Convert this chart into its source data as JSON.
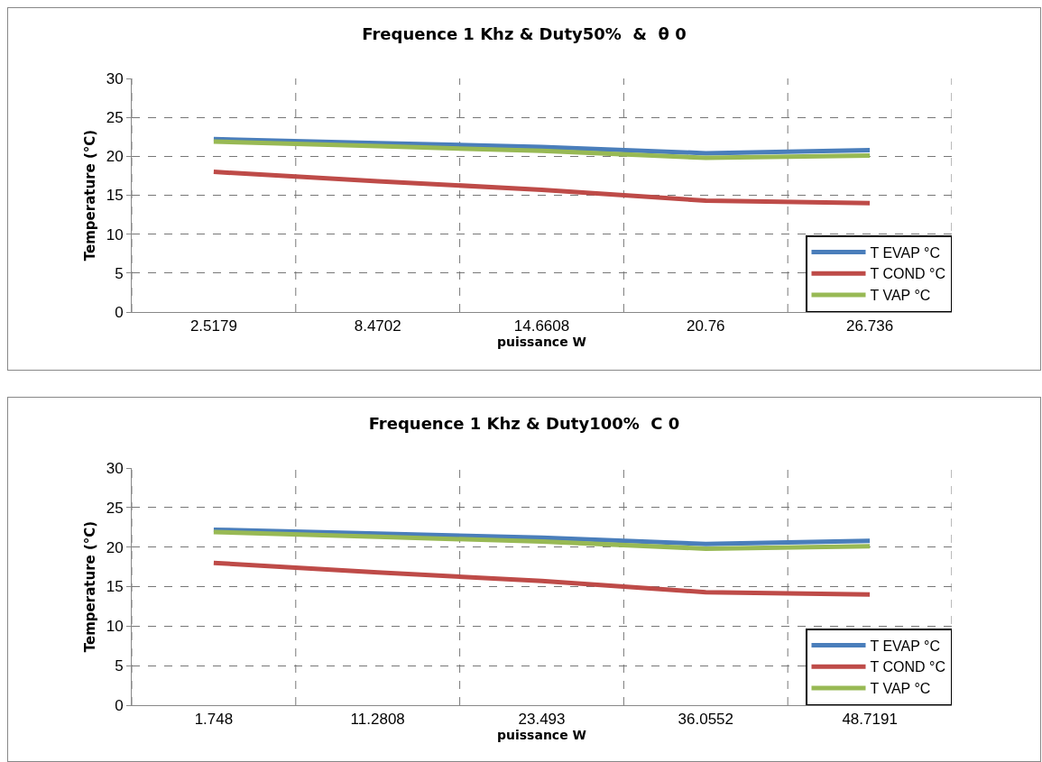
{
  "chart_data": [
    {
      "type": "line",
      "title": "Frequence 1 Khz & Duty50%  &  θ 0",
      "xlabel": "puissance W",
      "ylabel": "Temperature (°C)",
      "categories": [
        "2.5179",
        "8.4702",
        "14.6608",
        "20.76",
        "26.736"
      ],
      "series": [
        {
          "name": "T EVAP °C",
          "color": "#4a7ebb",
          "values": [
            22.2,
            21.7,
            21.2,
            20.4,
            20.8
          ]
        },
        {
          "name": "T COND °C",
          "color": "#be4b48",
          "values": [
            18,
            16.8,
            15.7,
            14.3,
            14
          ]
        },
        {
          "name": "T VAP °C",
          "color": "#98b954",
          "values": [
            21.9,
            21.3,
            20.7,
            19.8,
            20.1
          ]
        }
      ],
      "ylim": [
        0,
        30
      ],
      "yticks": [
        0,
        5,
        10,
        15,
        20,
        25,
        30
      ],
      "grid": true,
      "legend": "bottom right",
      "marker": "none",
      "line_style": "solid"
    },
    {
      "type": "line",
      "title": "Frequence 1 Khz & Duty100%  C 0",
      "xlabel": "puissance W",
      "ylabel": "Temperature (°C)",
      "categories": [
        "1.748",
        "11.2808",
        "23.493",
        "36.0552",
        "48.7191"
      ],
      "series": [
        {
          "name": "T EVAP °C",
          "color": "#4a7ebb",
          "values": [
            22.2,
            21.7,
            21.2,
            20.4,
            20.8
          ]
        },
        {
          "name": "T COND °C",
          "color": "#be4b48",
          "values": [
            18,
            16.8,
            15.7,
            14.3,
            14
          ]
        },
        {
          "name": "T VAP °C",
          "color": "#98b954",
          "values": [
            21.9,
            21.3,
            20.7,
            19.8,
            20.1
          ]
        }
      ],
      "ylim": [
        0,
        30
      ],
      "yticks": [
        0,
        5,
        10,
        15,
        20,
        25,
        30
      ],
      "grid": true,
      "legend": "bottom right",
      "marker": "none",
      "line_style": "solid"
    }
  ]
}
